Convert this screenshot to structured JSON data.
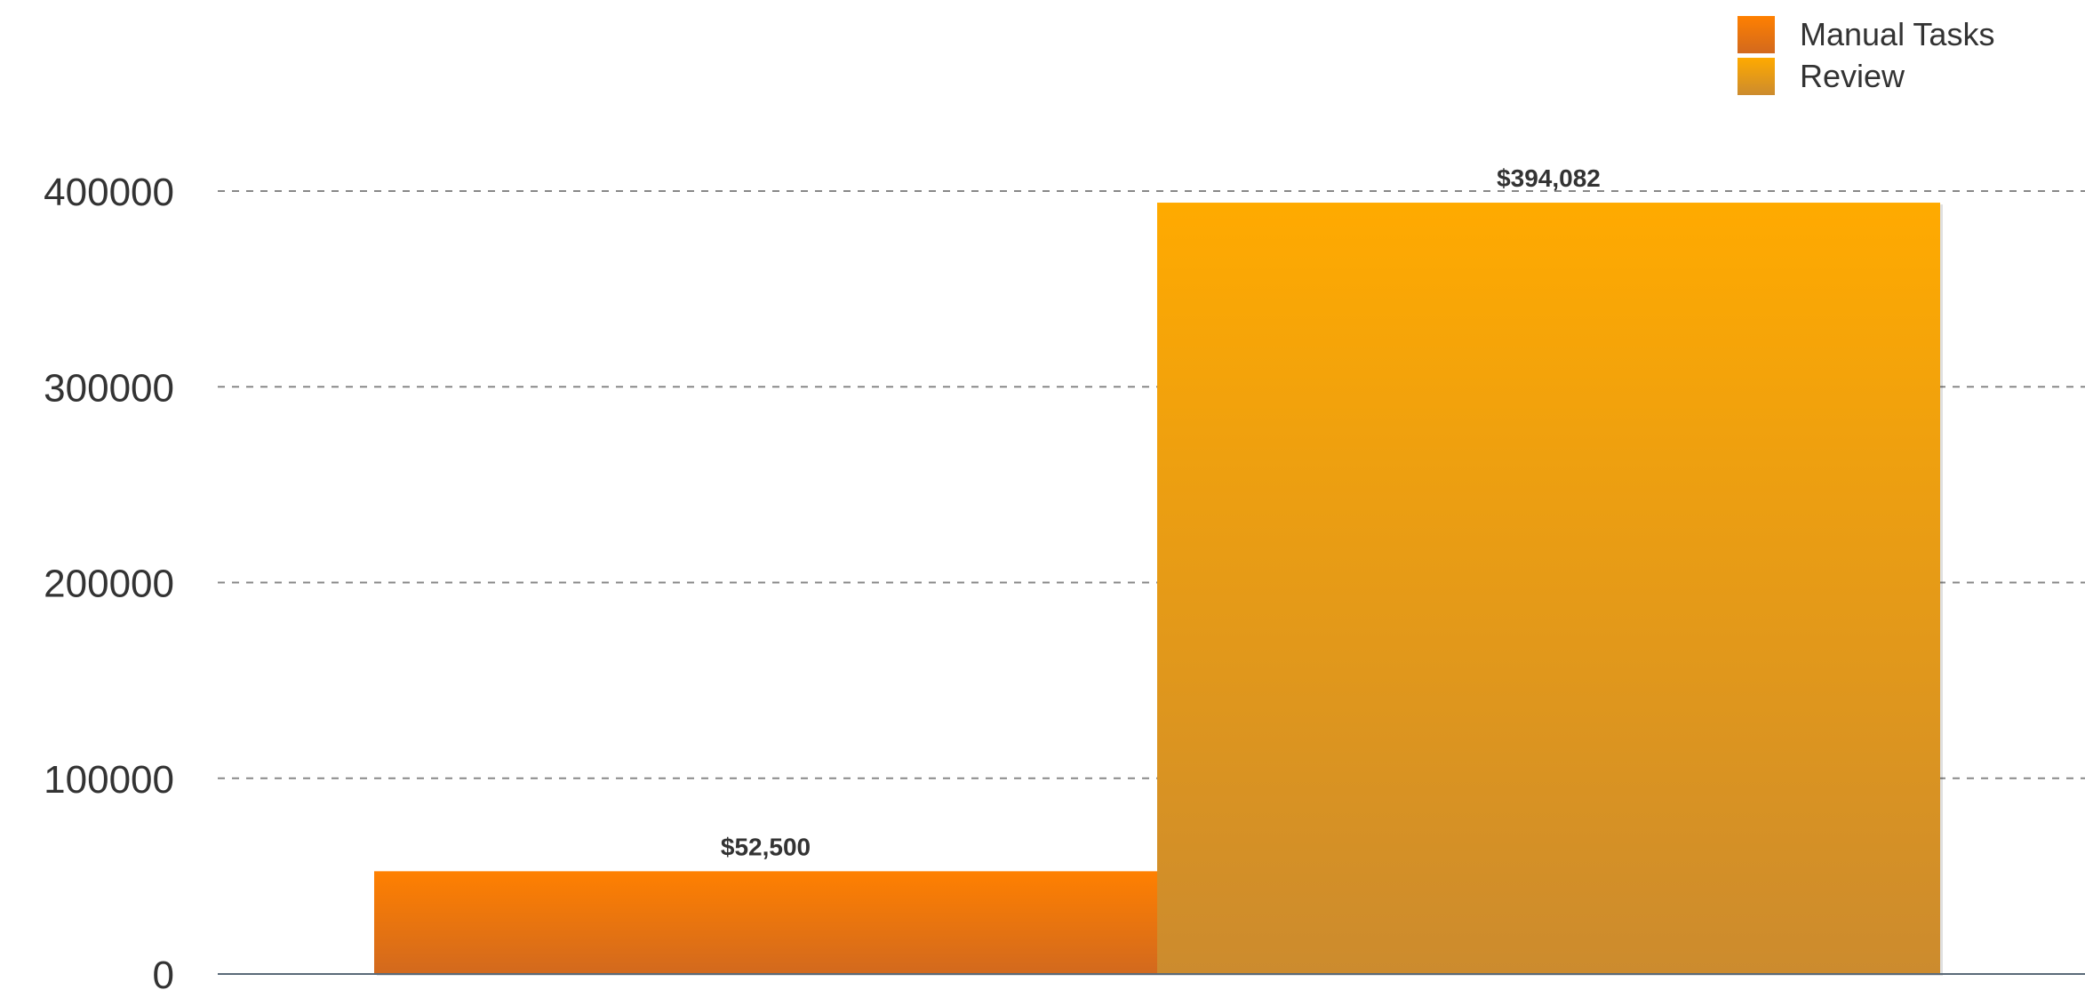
{
  "chart_data": {
    "type": "bar",
    "categories": [
      ""
    ],
    "series": [
      {
        "name": "Manual Tasks",
        "values": [
          52500
        ],
        "label": "$52,500",
        "color_top": "#FF8000",
        "color_bottom": "#D2691E"
      },
      {
        "name": "Review",
        "values": [
          394082
        ],
        "label": "$394,082",
        "color_top": "#FFAA00",
        "color_bottom": "#CC8B2E"
      }
    ],
    "ylim": [
      0,
      400000
    ],
    "yticks": [
      0,
      100000,
      200000,
      300000,
      400000
    ],
    "ytick_labels": [
      "0",
      "100000",
      "200000",
      "300000",
      "400000"
    ],
    "grid": true,
    "legend_position": "top-right",
    "title": "",
    "xlabel": "",
    "ylabel": ""
  }
}
